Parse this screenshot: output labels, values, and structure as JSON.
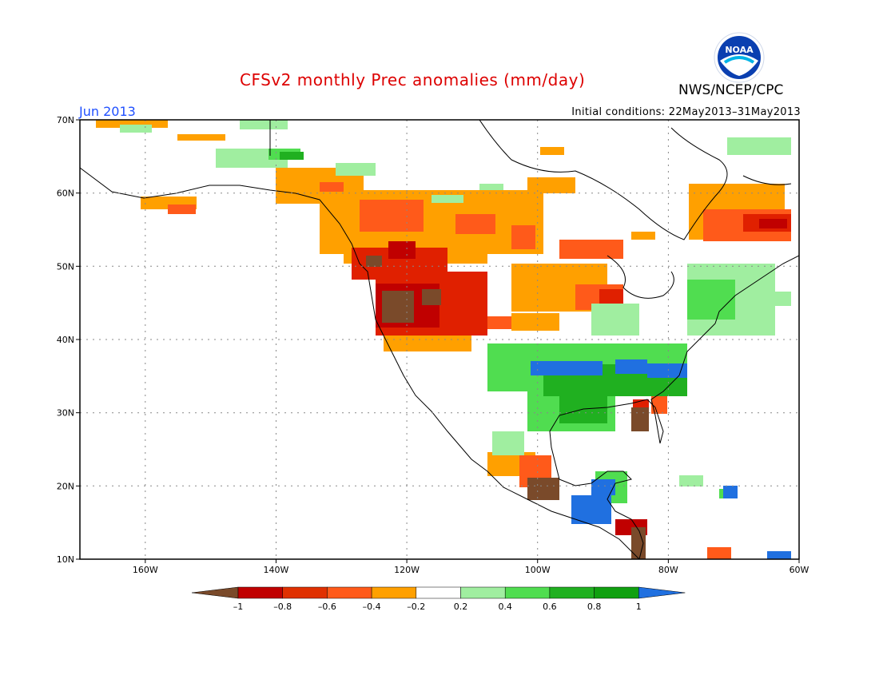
{
  "title": "CFSv2 monthly Prec anomalies (mm/day)",
  "agency": "NWS/NCEP/CPC",
  "logo_text": "NOAA",
  "month_label": "Jun 2013",
  "initial_conditions": "Initial conditions: 22May2013–31May2013",
  "map": {
    "lon_range": [
      -170,
      -60
    ],
    "lat_range": [
      10,
      70
    ],
    "lat_ticks": [
      "10N",
      "20N",
      "30N",
      "40N",
      "50N",
      "60N",
      "70N"
    ],
    "lon_ticks": [
      "160W",
      "140W",
      "120W",
      "100W",
      "80W",
      "60W"
    ],
    "grid": "dotted"
  },
  "legend": {
    "tick_labels": [
      "–1",
      "–0.8",
      "–0.6",
      "–0.4",
      "–0.2",
      "0.2",
      "0.4",
      "0.6",
      "0.8",
      "1"
    ],
    "colors": [
      "#7a4a2a",
      "#c00000",
      "#e03000",
      "#ff5a1a",
      "#ffa000",
      "#ffffff",
      "#a0eea0",
      "#50dd50",
      "#20b020",
      "#10a010",
      "#2070e0"
    ]
  },
  "colors": {
    "title": "#dd0000",
    "month_label": "#2050ff"
  }
}
